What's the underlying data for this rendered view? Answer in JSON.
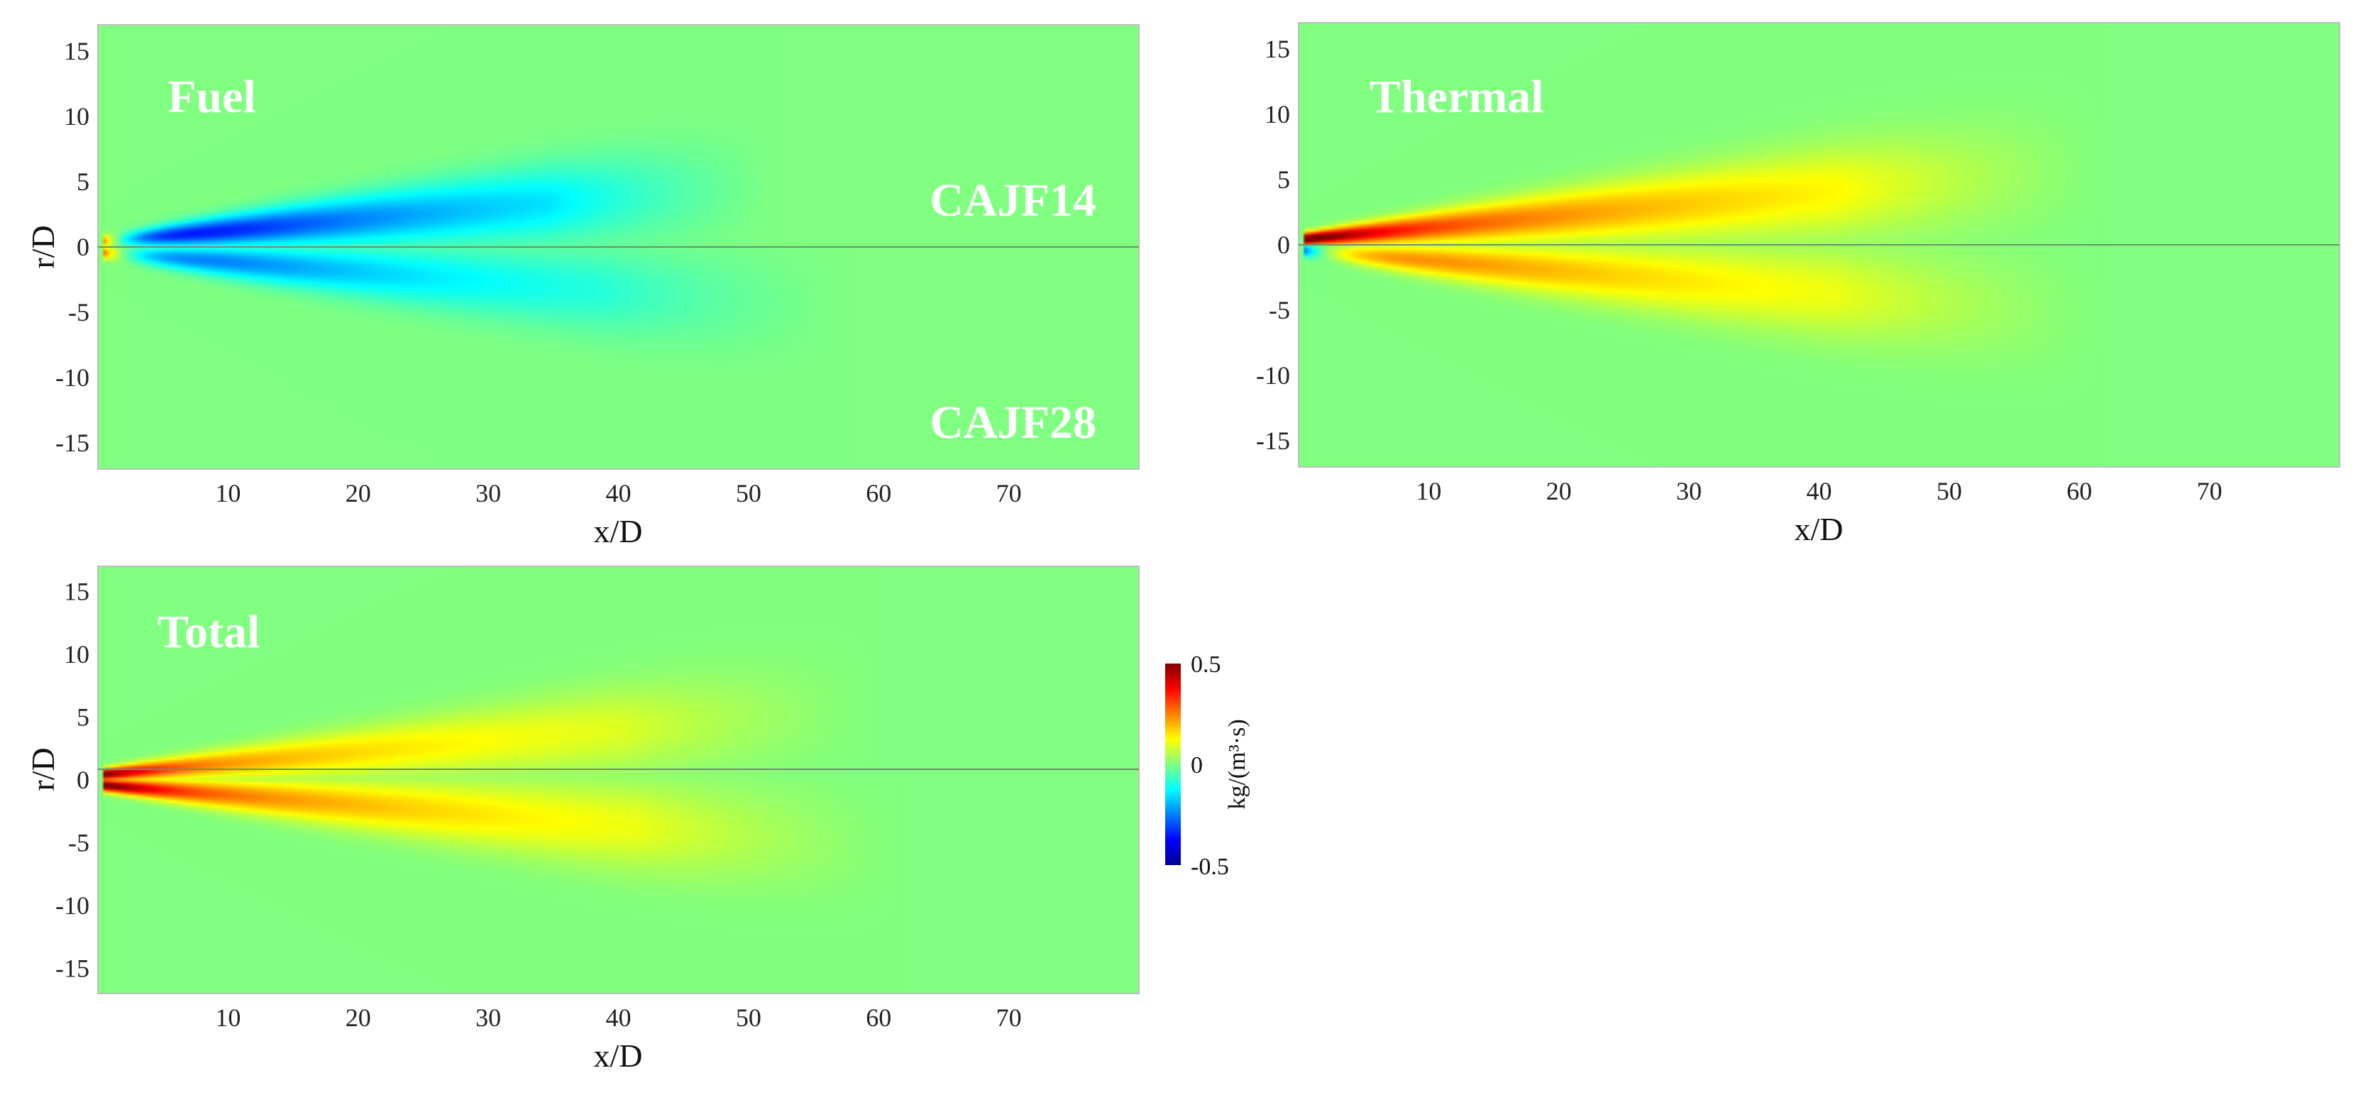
{
  "chart_data": {
    "type": "heatmap",
    "colormap": "jet",
    "background_value": 0,
    "xlabel": "x/D",
    "ylabel": "r/D",
    "xlim": [
      0,
      80
    ],
    "ylim": [
      -17,
      17
    ],
    "xticks": [
      10,
      20,
      30,
      40,
      50,
      60,
      70
    ],
    "yticks": [
      15,
      10,
      5,
      0,
      -5,
      -10,
      -15
    ],
    "case_labels": {
      "upper_half": "CAJF14",
      "lower_half": "CAJF28"
    },
    "colorbar": {
      "label": "kg/(m³·s)",
      "min": -0.5,
      "max": 0.5,
      "ticks": [
        "0.5",
        "0",
        "-0.5"
      ]
    },
    "panels": [
      {
        "id": "fuel",
        "title": "Fuel",
        "show_case_labels": true,
        "jets": [
          {
            "half": "upper",
            "x_end": 52,
            "spread": 0.085,
            "width_base": 0.3,
            "width_gain": 0.05,
            "tip": 0.5,
            "body": -0.45,
            "body_decay": 0.05,
            "far": -0.1,
            "far_decay": 0.01
          },
          {
            "half": "lower",
            "x_end": 58,
            "spread": 0.075,
            "width_base": 0.3,
            "width_gain": 0.05,
            "tip": 0.5,
            "body": -0.3,
            "body_decay": 0.05,
            "far": -0.1,
            "far_decay": 0.02
          }
        ]
      },
      {
        "id": "thermal",
        "title": "Thermal",
        "show_case_labels": false,
        "jets": [
          {
            "half": "upper",
            "x_end": 62,
            "spread": 0.09,
            "width_base": 0.3,
            "width_gain": 0.05,
            "tip": 0.5,
            "body": 0.3,
            "body_decay": 0.03,
            "far": 0.1,
            "far_decay": 0.02
          },
          {
            "half": "lower",
            "x_end": 62,
            "spread": 0.08,
            "width_base": 0.3,
            "width_gain": 0.05,
            "tip": -0.45,
            "body": 0.25,
            "body_decay": 0.03,
            "far": 0.08,
            "far_decay": 0.02
          }
        ]
      },
      {
        "id": "total",
        "title": "Total",
        "show_case_labels": false,
        "jets": [
          {
            "half": "upper",
            "x_end": 60,
            "spread": 0.09,
            "width_base": 0.3,
            "width_gain": 0.05,
            "tip": 0.5,
            "body": 0.22,
            "body_decay": 0.03,
            "far": 0.06,
            "far_decay": 0.02
          },
          {
            "half": "lower",
            "x_end": 62,
            "spread": 0.08,
            "width_base": 0.3,
            "width_gain": 0.05,
            "tip": 0.5,
            "body": 0.25,
            "body_decay": 0.03,
            "far": 0.08,
            "far_decay": 0.02
          }
        ]
      }
    ]
  }
}
